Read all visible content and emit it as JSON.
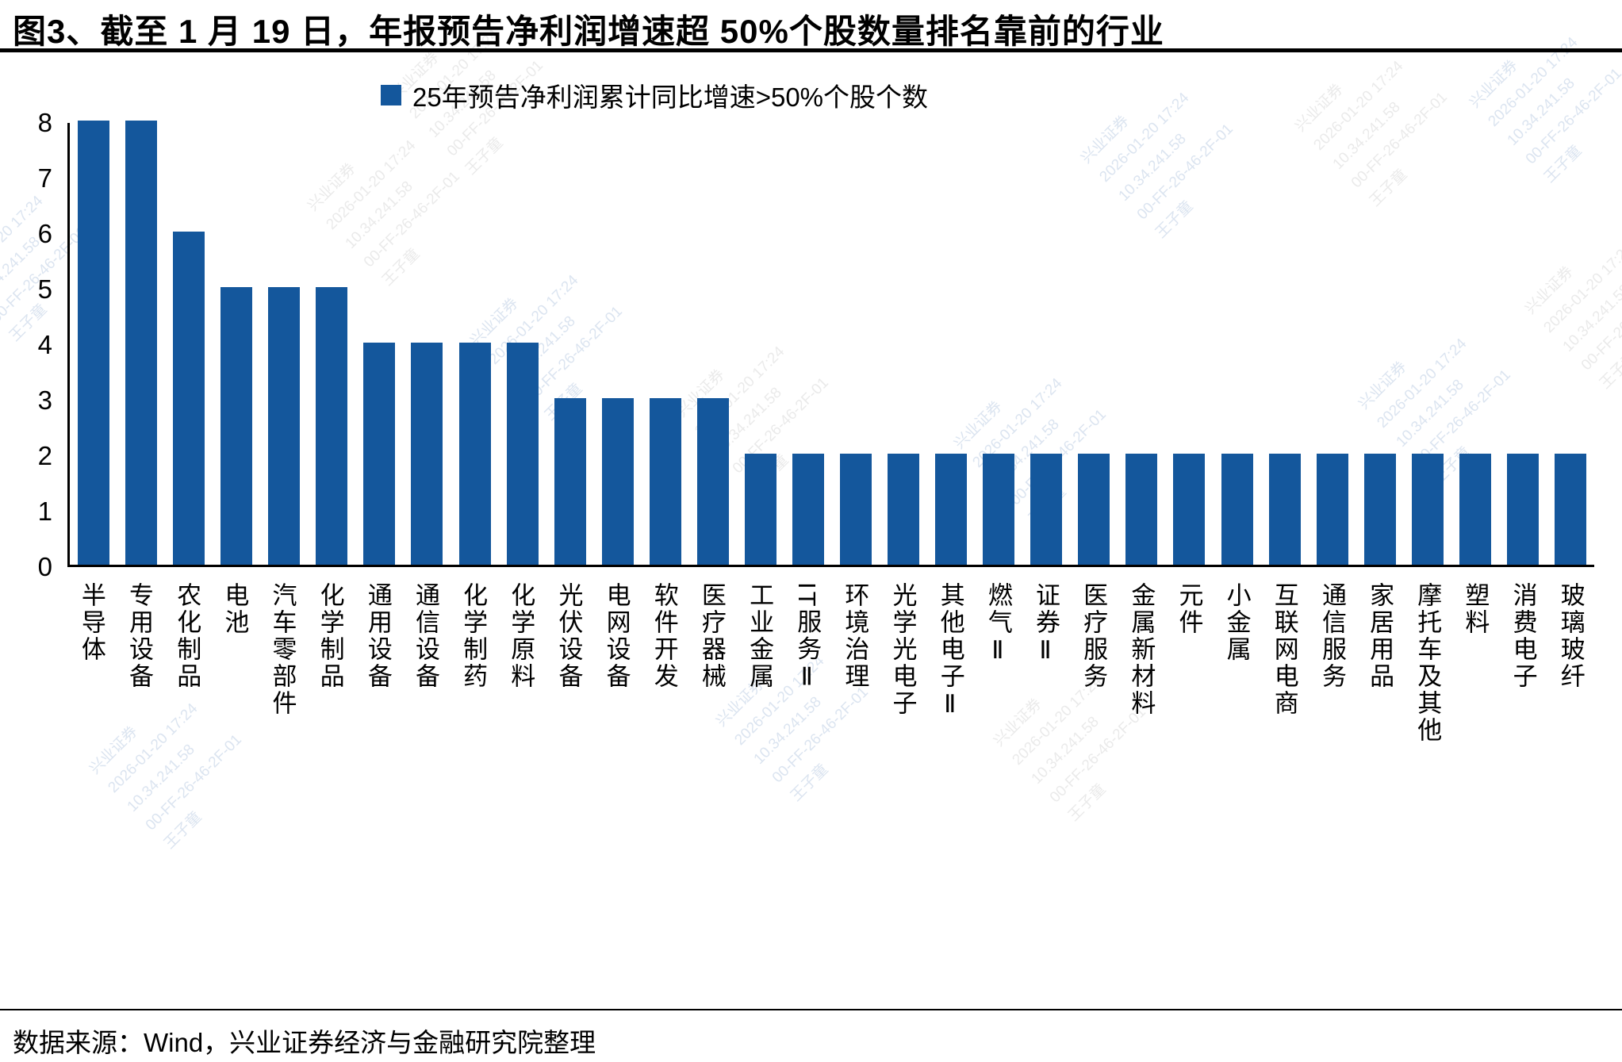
{
  "title": "图3、截至 1 月 19 日，年报预告净利润增速超 50%个股数量排名靠前的行业",
  "legend_label": "25年预告净利润累计同比增速>50%个股个数",
  "footer": {
    "source": "数据来源：Wind，兴业证券经济与金融研究院整理"
  },
  "colors": {
    "bar": "#14579C",
    "axis": "#000000",
    "watermark_blue": "rgba(40,95,165,0.17)",
    "watermark_gray": "rgba(125,125,125,0.16)"
  },
  "watermark_lines": [
    "兴业证券",
    "2026-01-20 17:24",
    "10.34.241.58",
    "00-FF-26-46-2F-01",
    "王子童"
  ],
  "chart_data": {
    "type": "bar",
    "title": "图3、截至 1 月 19 日，年报预告净利润增速超 50%个股数量排名靠前的行业",
    "legend": [
      "25年预告净利润累计同比增速>50%个股个数"
    ],
    "legend_position": "top-center",
    "grid": false,
    "xlabel": "",
    "ylabel": "",
    "ylim": [
      0,
      8
    ],
    "yticks": [
      0,
      1,
      2,
      3,
      4,
      5,
      6,
      7,
      8
    ],
    "categories": [
      "半导体",
      "专用设备",
      "农化制品",
      "电池",
      "汽车零部件",
      "化学制品",
      "通用设备",
      "通信设备",
      "化学制药",
      "化学原料",
      "光伏设备",
      "电网设备",
      "软件开发",
      "医疗器械",
      "工业金属",
      "IT服务Ⅱ",
      "环境治理",
      "光学光电子",
      "其他电子Ⅱ",
      "燃气Ⅱ",
      "证券Ⅱ",
      "医疗服务",
      "金属新材料",
      "元件",
      "小金属",
      "互联网电商",
      "通信服务",
      "家居用品",
      "摩托车及其他",
      "塑料",
      "消费电子",
      "玻璃玻纤"
    ],
    "values": [
      8,
      8,
      6,
      5,
      5,
      5,
      4,
      4,
      4,
      4,
      3,
      3,
      3,
      3,
      2,
      2,
      2,
      2,
      2,
      2,
      2,
      2,
      2,
      2,
      2,
      2,
      2,
      2,
      2,
      2,
      2,
      2
    ]
  }
}
